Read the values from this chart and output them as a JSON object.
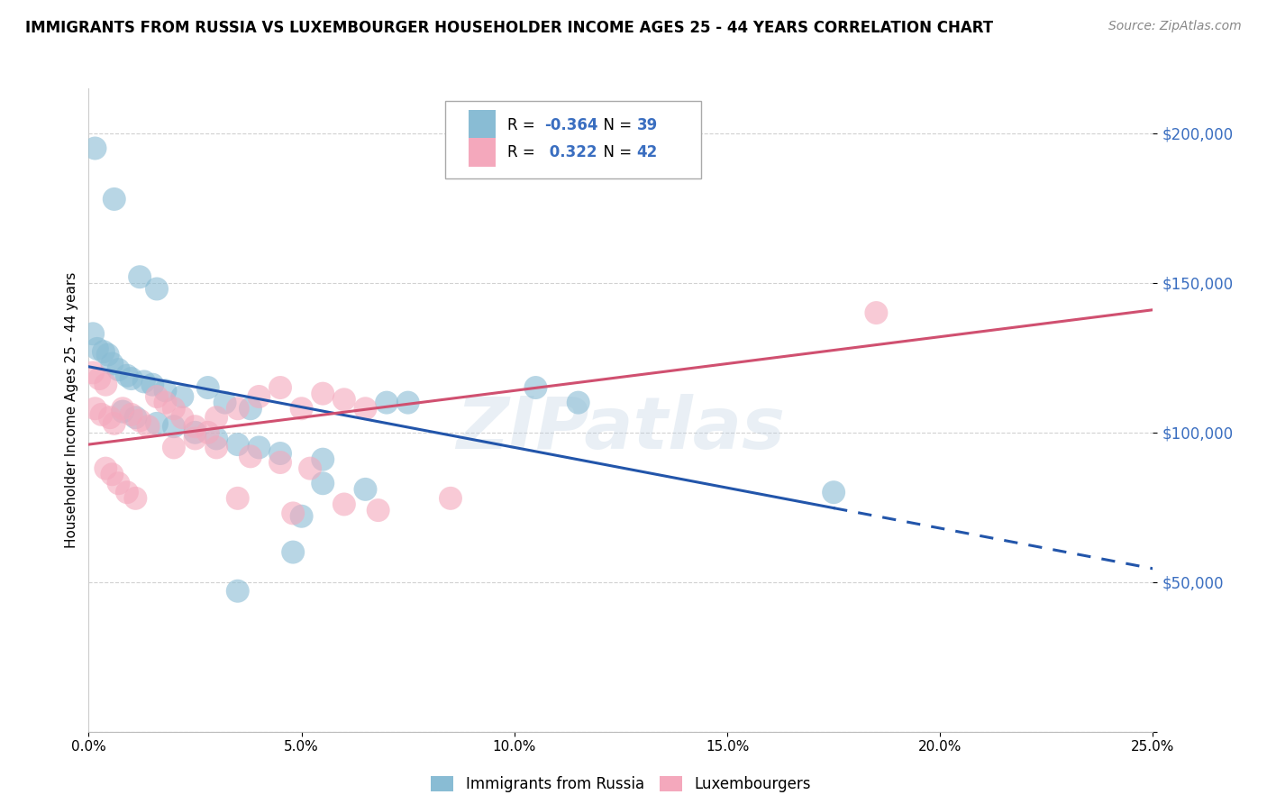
{
  "title": "IMMIGRANTS FROM RUSSIA VS LUXEMBOURGER HOUSEHOLDER INCOME AGES 25 - 44 YEARS CORRELATION CHART",
  "source": "Source: ZipAtlas.com",
  "ylabel": "Householder Income Ages 25 - 44 years",
  "watermark": "ZIPatlas",
  "legend_r_labels": [
    "R = -0.364  N = 39",
    "R =  0.322  N = 42"
  ],
  "legend_bottom_labels": [
    "Immigrants from Russia",
    "Luxembourgers"
  ],
  "blue_scatter_color": "#89bcd4",
  "pink_scatter_color": "#f4a8bc",
  "blue_line_color": "#2255aa",
  "pink_line_color": "#d05070",
  "russia_points": [
    [
      0.15,
      195000
    ],
    [
      0.6,
      178000
    ],
    [
      1.2,
      152000
    ],
    [
      1.6,
      148000
    ],
    [
      0.1,
      133000
    ],
    [
      0.2,
      128000
    ],
    [
      0.35,
      127000
    ],
    [
      0.45,
      126000
    ],
    [
      0.55,
      123000
    ],
    [
      0.7,
      121000
    ],
    [
      0.9,
      119000
    ],
    [
      1.0,
      118000
    ],
    [
      1.3,
      117000
    ],
    [
      1.5,
      116000
    ],
    [
      1.8,
      114000
    ],
    [
      2.2,
      112000
    ],
    [
      2.8,
      115000
    ],
    [
      3.2,
      110000
    ],
    [
      3.8,
      108000
    ],
    [
      0.8,
      107000
    ],
    [
      1.1,
      105000
    ],
    [
      1.6,
      103000
    ],
    [
      2.0,
      102000
    ],
    [
      2.5,
      100000
    ],
    [
      3.0,
      98000
    ],
    [
      3.5,
      96000
    ],
    [
      4.0,
      95000
    ],
    [
      4.5,
      93000
    ],
    [
      5.5,
      91000
    ],
    [
      7.0,
      110000
    ],
    [
      7.5,
      110000
    ],
    [
      5.5,
      83000
    ],
    [
      6.5,
      81000
    ],
    [
      10.5,
      115000
    ],
    [
      11.5,
      110000
    ],
    [
      5.0,
      72000
    ],
    [
      4.8,
      60000
    ],
    [
      3.5,
      47000
    ],
    [
      17.5,
      80000
    ]
  ],
  "luxembourger_points": [
    [
      0.1,
      120000
    ],
    [
      0.25,
      118000
    ],
    [
      0.4,
      116000
    ],
    [
      0.15,
      108000
    ],
    [
      0.3,
      106000
    ],
    [
      0.5,
      105000
    ],
    [
      0.6,
      103000
    ],
    [
      0.8,
      108000
    ],
    [
      1.0,
      106000
    ],
    [
      1.2,
      104000
    ],
    [
      1.4,
      102000
    ],
    [
      1.6,
      112000
    ],
    [
      1.8,
      110000
    ],
    [
      2.0,
      108000
    ],
    [
      2.2,
      105000
    ],
    [
      2.5,
      102000
    ],
    [
      2.8,
      100000
    ],
    [
      3.0,
      105000
    ],
    [
      3.5,
      108000
    ],
    [
      4.0,
      112000
    ],
    [
      4.5,
      115000
    ],
    [
      5.0,
      108000
    ],
    [
      5.5,
      113000
    ],
    [
      6.0,
      111000
    ],
    [
      6.5,
      108000
    ],
    [
      3.0,
      95000
    ],
    [
      3.8,
      92000
    ],
    [
      4.5,
      90000
    ],
    [
      5.2,
      88000
    ],
    [
      0.4,
      88000
    ],
    [
      0.55,
      86000
    ],
    [
      0.7,
      83000
    ],
    [
      0.9,
      80000
    ],
    [
      1.1,
      78000
    ],
    [
      2.0,
      95000
    ],
    [
      2.5,
      98000
    ],
    [
      3.5,
      78000
    ],
    [
      4.8,
      73000
    ],
    [
      6.0,
      76000
    ],
    [
      6.8,
      74000
    ],
    [
      18.5,
      140000
    ],
    [
      8.5,
      78000
    ]
  ],
  "xmin": 0.0,
  "xmax": 25.0,
  "ymin": 0,
  "ymax": 215000,
  "yticks": [
    0,
    50000,
    100000,
    150000,
    200000
  ],
  "ytick_labels": [
    "",
    "$50,000",
    "$100,000",
    "$150,000",
    "$200,000"
  ],
  "blue_trend_solid_end": 17.5,
  "blue_trend_slope": -2700,
  "blue_trend_intercept": 122000,
  "pink_trend_slope": 1800,
  "pink_trend_intercept": 96000,
  "background_color": "#ffffff",
  "grid_color": "#cccccc",
  "title_fontsize": 12,
  "source_fontsize": 10,
  "axis_fontsize": 11,
  "legend_fontsize": 12
}
